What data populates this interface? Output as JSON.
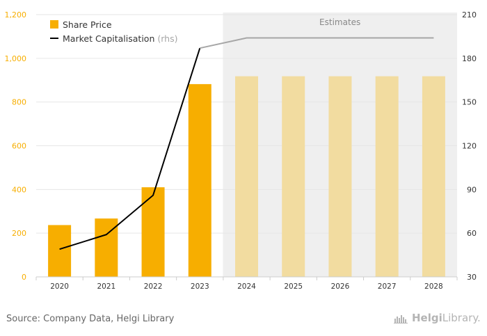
{
  "chart_data": {
    "type": "bar",
    "categories": [
      "2020",
      "2021",
      "2022",
      "2023",
      "2024",
      "2025",
      "2026",
      "2027",
      "2028"
    ],
    "series": [
      {
        "name": "Share Price",
        "type": "bar",
        "axis": "left",
        "values": [
          237,
          267,
          410,
          882,
          918,
          918,
          918,
          918,
          918
        ],
        "estimate_from_index": 4
      },
      {
        "name": "Market Capitalisation",
        "name_suffix": "(rhs)",
        "type": "line",
        "axis": "right",
        "values": [
          49,
          59,
          86,
          187,
          194,
          194,
          194,
          194,
          194
        ],
        "estimate_from_index": 3
      }
    ],
    "ylim_left": [
      0,
      1200
    ],
    "yticks_left": [
      0,
      200,
      400,
      600,
      800,
      1000,
      1200
    ],
    "ytick_labels_left": [
      "0",
      "200",
      "400",
      "600",
      "800",
      "1,000",
      "1,200"
    ],
    "ylim_right": [
      30,
      210
    ],
    "yticks_right": [
      30,
      60,
      90,
      120,
      150,
      180,
      210
    ],
    "ytick_labels_right": [
      "30",
      "60",
      "90",
      "120",
      "150",
      "180",
      "210"
    ],
    "estimates_label": "Estimates",
    "estimates_start_category": "2024",
    "legend_position": "top-left",
    "grid": true,
    "colors": {
      "bar": "#F7AE00",
      "bar_estimate": "#F2DCA0",
      "line": "#000000",
      "line_estimate": "#A6A6A6",
      "estimate_band": "#EFEFEF",
      "left_axis_text": "#F7AE00",
      "right_axis_text": "#333333",
      "grid": "#E6E6E6"
    }
  },
  "footer": {
    "source": "Source: Company Data, Helgi Library",
    "logo_part1": "Helgi",
    "logo_part2": "Library."
  }
}
